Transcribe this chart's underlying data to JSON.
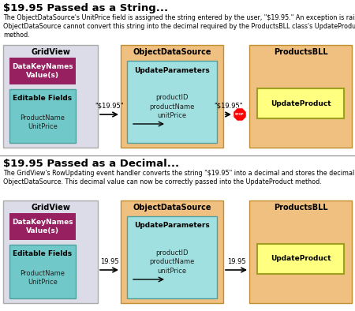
{
  "title1": "$19.95 Passed as a String...",
  "desc1": "The ObjectDataSource's UnitPrice field is assigned the string entered by the user, \"$19.95.\" An exception is raised as the\nObjectDataSource cannot convert this string into the decimal required by the ProductsBLL class's UpdateProducts\nmethod.",
  "title2": "$19.95 Passed as a Decimal...",
  "desc2": "The GridView's RowUpdating event handler converts the string \"$19.95\" into a decimal and stores the decimal in the\nObjectDataSource. This decimal value can now be correctly passed into the UpdateProduct method.",
  "bg_color": "#ffffff",
  "gridview_bg": "#dcdce8",
  "ods_bg": "#f0c080",
  "bll_bg": "#f0c080",
  "datakeynames_bg": "#962060",
  "editable_bg": "#70c8c8",
  "updateparams_bg": "#a0e0e0",
  "updateproduct_bg": "#ffff80",
  "divider_color": "#888888",
  "arrow_label_string": "\"$19.95\"",
  "arrow_label_decimal": "19.95",
  "title_fontsize": 9.5,
  "desc_fontsize": 5.8,
  "label_fontsize": 7.0,
  "small_fontsize": 6.5,
  "tiny_fontsize": 6.0,
  "arrow_label_fontsize": 6.0
}
